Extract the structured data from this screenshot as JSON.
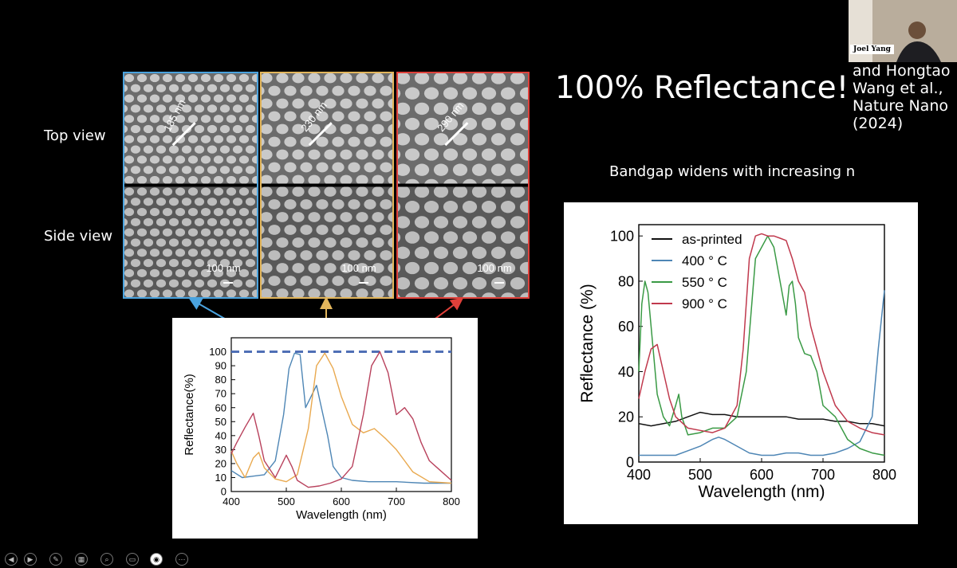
{
  "slide": {
    "title": "100% Reflectance!",
    "citation_lines": [
      "and Hongtao",
      "Wang et al.,",
      "Nature Nano",
      "(2024)"
    ],
    "subtitle": "Bandgap widens with increasing n",
    "row_labels": {
      "top": "Top view",
      "side": "Side view"
    }
  },
  "video": {
    "participant_name": "Joel Yang"
  },
  "sem_images": [
    {
      "period_label": "185 nm",
      "scale_label": "100 nm",
      "color": "#4aa3df"
    },
    {
      "period_label": "230 nm",
      "scale_label": "100 nm",
      "color": "#e3b65c"
    },
    {
      "period_label": "290 nm",
      "scale_label": "100 nm",
      "color": "#e0403a"
    }
  ],
  "toolbar": {
    "icons": [
      "prev-slide-icon",
      "next-slide-icon",
      "pen-icon",
      "see-all-slides-icon",
      "zoom-icon",
      "subtitles-icon",
      "camera-icon",
      "more-options-icon"
    ]
  },
  "chart_data": [
    {
      "type": "line",
      "title": "",
      "xlabel": "Wavelength (nm)",
      "ylabel": "Reflectance(%)",
      "xlim": [
        400,
        800
      ],
      "ylim": [
        0,
        110
      ],
      "xticks": [
        400,
        500,
        600,
        700,
        800
      ],
      "yticks": [
        0,
        10,
        20,
        30,
        40,
        50,
        60,
        70,
        80,
        90,
        100
      ],
      "grid": false,
      "reference_line": {
        "y": 100,
        "style": "dashed",
        "color": "#4f6fb5"
      },
      "series": [
        {
          "color": "#4e86b5",
          "x": [
            400,
            420,
            440,
            460,
            480,
            495,
            505,
            515,
            525,
            535,
            545,
            555,
            565,
            575,
            585,
            600,
            620,
            650,
            700,
            750,
            800
          ],
          "y": [
            15,
            10,
            11,
            12,
            22,
            55,
            88,
            99,
            98,
            60,
            68,
            76,
            58,
            40,
            18,
            10,
            8,
            7,
            7,
            6,
            6
          ]
        },
        {
          "color": "#e9a94f",
          "x": [
            400,
            410,
            425,
            440,
            450,
            460,
            480,
            500,
            520,
            540,
            555,
            570,
            585,
            600,
            620,
            640,
            660,
            680,
            700,
            730,
            760,
            800
          ],
          "y": [
            29,
            20,
            10,
            24,
            28,
            17,
            9,
            7,
            12,
            45,
            90,
            99,
            88,
            68,
            48,
            42,
            45,
            38,
            30,
            14,
            7,
            6
          ]
        },
        {
          "color": "#b8415c",
          "x": [
            400,
            410,
            425,
            440,
            450,
            460,
            480,
            500,
            510,
            520,
            540,
            560,
            580,
            600,
            620,
            640,
            655,
            670,
            685,
            700,
            715,
            730,
            745,
            760,
            780,
            800
          ],
          "y": [
            27,
            35,
            46,
            56,
            40,
            22,
            10,
            26,
            18,
            8,
            3,
            4,
            6,
            9,
            18,
            55,
            90,
            100,
            85,
            55,
            60,
            52,
            35,
            22,
            15,
            8
          ]
        }
      ]
    },
    {
      "type": "line",
      "title": "",
      "xlabel": "Wavelength (nm)",
      "ylabel": "Reflectance (%)",
      "xlim": [
        400,
        800
      ],
      "ylim": [
        0,
        105
      ],
      "xticks": [
        400,
        500,
        600,
        700,
        800
      ],
      "yticks": [
        0,
        20,
        40,
        60,
        80,
        100
      ],
      "grid": false,
      "legend": "top-left",
      "series": [
        {
          "name": "as-printed",
          "color": "#111111",
          "x": [
            400,
            420,
            440,
            460,
            480,
            500,
            520,
            540,
            560,
            580,
            600,
            620,
            640,
            660,
            680,
            700,
            720,
            740,
            760,
            780,
            800
          ],
          "y": [
            17,
            16,
            17,
            18,
            20,
            22,
            21,
            21,
            20,
            20,
            20,
            20,
            20,
            19,
            19,
            19,
            18,
            18,
            17,
            17,
            16
          ]
        },
        {
          "name": "400 ° C",
          "color": "#4e86b5",
          "x": [
            400,
            420,
            440,
            460,
            480,
            500,
            520,
            530,
            540,
            560,
            580,
            600,
            620,
            640,
            660,
            680,
            700,
            720,
            740,
            760,
            780,
            790,
            800
          ],
          "y": [
            3,
            3,
            3,
            3,
            5,
            7,
            10,
            11,
            10,
            7,
            4,
            3,
            3,
            4,
            4,
            3,
            3,
            4,
            6,
            9,
            20,
            50,
            76
          ]
        },
        {
          "name": "550 ° C",
          "color": "#3a9a45",
          "x": [
            400,
            405,
            410,
            415,
            420,
            430,
            440,
            450,
            460,
            465,
            470,
            480,
            500,
            520,
            540,
            560,
            575,
            590,
            600,
            610,
            620,
            630,
            640,
            645,
            650,
            655,
            660,
            670,
            680,
            690,
            700,
            720,
            740,
            760,
            780,
            800
          ],
          "y": [
            40,
            70,
            80,
            75,
            60,
            30,
            20,
            16,
            25,
            30,
            20,
            12,
            13,
            15,
            15,
            20,
            40,
            90,
            95,
            100,
            95,
            80,
            65,
            78,
            80,
            70,
            55,
            48,
            47,
            40,
            25,
            20,
            10,
            6,
            4,
            3
          ]
        },
        {
          "name": "900 ° C",
          "color": "#c0394d",
          "x": [
            400,
            410,
            420,
            430,
            440,
            450,
            460,
            480,
            500,
            520,
            540,
            560,
            570,
            580,
            590,
            600,
            610,
            620,
            630,
            640,
            650,
            660,
            670,
            680,
            700,
            720,
            740,
            760,
            780,
            800
          ],
          "y": [
            28,
            40,
            50,
            52,
            40,
            28,
            20,
            15,
            14,
            13,
            15,
            25,
            50,
            90,
            100,
            101,
            100,
            100,
            99,
            98,
            90,
            80,
            75,
            60,
            40,
            25,
            18,
            15,
            13,
            12
          ]
        }
      ]
    }
  ]
}
